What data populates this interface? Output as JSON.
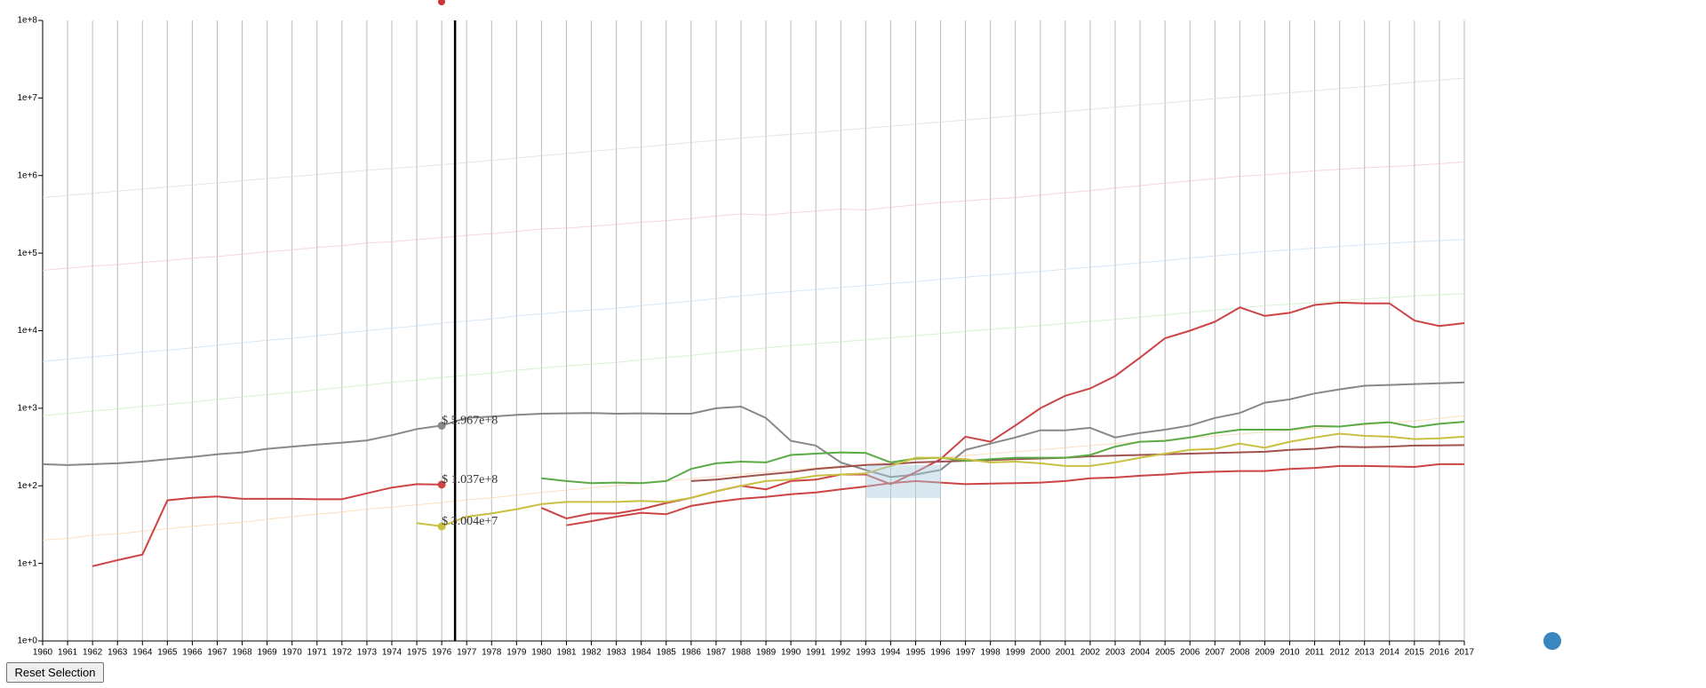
{
  "chart_data": {
    "type": "line",
    "yscale": "log",
    "grid": true,
    "hover_x": 1976,
    "xlim": [
      1960,
      2017
    ],
    "ylim": [
      1,
      100000000
    ],
    "x": [
      1960,
      1961,
      1962,
      1963,
      1964,
      1965,
      1966,
      1967,
      1968,
      1969,
      1970,
      1971,
      1972,
      1973,
      1974,
      1975,
      1976,
      1977,
      1978,
      1979,
      1980,
      1981,
      1982,
      1983,
      1984,
      1985,
      1986,
      1987,
      1988,
      1989,
      1990,
      1991,
      1992,
      1993,
      1994,
      1995,
      1996,
      1997,
      1998,
      1999,
      2000,
      2001,
      2002,
      2003,
      2004,
      2005,
      2006,
      2007,
      2008,
      2009,
      2010,
      2011,
      2012,
      2013,
      2014,
      2015,
      2016,
      2017
    ],
    "xticks": [
      1960,
      1961,
      1962,
      1963,
      1964,
      1965,
      1966,
      1967,
      1968,
      1969,
      1970,
      1971,
      1972,
      1973,
      1974,
      1975,
      1976,
      1977,
      1978,
      1979,
      1980,
      1981,
      1982,
      1983,
      1984,
      1985,
      1986,
      1987,
      1988,
      1989,
      1990,
      1991,
      1992,
      1993,
      1994,
      1995,
      1996,
      1997,
      1998,
      1999,
      2000,
      2001,
      2002,
      2003,
      2004,
      2005,
      2006,
      2007,
      2008,
      2009,
      2010,
      2011,
      2012,
      2013,
      2014,
      2015,
      2016,
      2017
    ],
    "yticks": [
      {
        "value": 1,
        "label": "1e+0"
      },
      {
        "value": 10,
        "label": "1e+1"
      },
      {
        "value": 100,
        "label": "1e+2"
      },
      {
        "value": 1000,
        "label": "1e+3"
      },
      {
        "value": 10000,
        "label": "1e+4"
      },
      {
        "value": 100000,
        "label": "1e+5"
      },
      {
        "value": 1000000,
        "label": "1e+6"
      },
      {
        "value": 10000000,
        "label": "1e+7"
      },
      {
        "value": 100000000,
        "label": "1e+8"
      }
    ],
    "series": [
      {
        "color": "#d8d8e0",
        "line_width": 1,
        "values": [
          520000,
          555000,
          590000,
          630000,
          670000,
          710000,
          755000,
          805000,
          860000,
          915000,
          970000,
          1030000,
          1100000,
          1170000,
          1240000,
          1300000,
          1380000,
          1470000,
          1570000,
          1680000,
          1800000,
          1920000,
          2050000,
          2190000,
          2340000,
          2500000,
          2670000,
          2850000,
          3040000,
          3220000,
          3400000,
          3600000,
          3830000,
          4070000,
          4330000,
          4600000,
          4900000,
          5200000,
          5550000,
          5900000,
          6300000,
          6700000,
          7150000,
          7600000,
          8100000,
          8600000,
          9200000,
          9800000,
          10400000,
          11000000,
          11700000,
          12400000,
          13200000,
          14000000,
          15000000,
          16000000,
          17000000,
          18000000
        ]
      },
      {
        "color": "#f2c4c4",
        "line_width": 1,
        "values": [
          60000,
          64000,
          68000,
          71000,
          76000,
          80000,
          86000,
          90000,
          97000,
          104000,
          110000,
          118000,
          125000,
          135000,
          140000,
          150000,
          158000,
          170000,
          178000,
          190000,
          205000,
          210000,
          222000,
          235000,
          250000,
          262000,
          280000,
          300000,
          320000,
          310000,
          330000,
          350000,
          370000,
          360000,
          390000,
          420000,
          450000,
          470000,
          500000,
          520000,
          560000,
          600000,
          640000,
          690000,
          740000,
          800000,
          850000,
          910000,
          980000,
          1020000,
          1080000,
          1150000,
          1200000,
          1260000,
          1300000,
          1350000,
          1420000,
          1500000
        ]
      },
      {
        "color": "#c6dbef",
        "line_width": 1,
        "values": [
          4000,
          4300,
          4600,
          4900,
          5300,
          5600,
          6000,
          6500,
          7000,
          7500,
          8000,
          8600,
          9300,
          10000,
          10800,
          11500,
          12500,
          13300,
          14200,
          15500,
          16500,
          17500,
          18500,
          19500,
          21000,
          22500,
          24000,
          26000,
          28000,
          30000,
          32000,
          34000,
          36000,
          38000,
          40500,
          43000,
          46000,
          49000,
          52000,
          55000,
          58000,
          62000,
          66000,
          70000,
          75000,
          80000,
          86000,
          92000,
          98000,
          105000,
          110000,
          116000,
          122000,
          128000,
          134000,
          140000,
          145000,
          150000
        ]
      },
      {
        "color": "#c7e9c0",
        "line_width": 1,
        "values": [
          800,
          860,
          920,
          980,
          1060,
          1120,
          1200,
          1300,
          1400,
          1500,
          1600,
          1720,
          1860,
          2000,
          2160,
          2300,
          2500,
          2660,
          2840,
          3100,
          3300,
          3500,
          3700,
          3900,
          4200,
          4500,
          4800,
          5200,
          5600,
          6000,
          6400,
          6800,
          7200,
          7600,
          8100,
          8600,
          9200,
          9800,
          10400,
          11000,
          11600,
          12400,
          13200,
          14000,
          15000,
          16000,
          17200,
          18400,
          19600,
          21000,
          22000,
          23200,
          24400,
          25600,
          26800,
          28000,
          29000,
          30000
        ]
      },
      {
        "color": "#fdd0a2",
        "line_width": 1,
        "values": [
          20,
          21,
          23,
          24,
          26,
          28,
          30,
          32,
          34,
          37,
          40,
          43,
          46,
          50,
          53,
          57,
          61,
          66,
          70,
          76,
          82,
          88,
          94,
          100,
          108,
          115,
          123,
          132,
          141,
          150,
          160,
          170,
          180,
          190,
          200,
          215,
          230,
          245,
          260,
          275,
          290,
          310,
          330,
          350,
          370,
          390,
          415,
          440,
          465,
          490,
          520,
          550,
          580,
          610,
          650,
          690,
          740,
          800
        ]
      },
      {
        "color": "#888888",
        "line_width": 2,
        "tooltip": "$ 5.967e+8",
        "values": [
          190,
          185,
          190,
          195,
          205,
          220,
          235,
          255,
          270,
          300,
          320,
          340,
          360,
          385,
          450,
          540,
          597,
          750,
          780,
          820,
          850,
          860,
          870,
          850,
          860,
          850,
          850,
          1000,
          1050,
          750,
          380,
          330,
          200,
          160,
          130,
          140,
          160,
          290,
          350,
          420,
          520,
          520,
          560,
          420,
          480,
          530,
          600,
          750,
          870,
          1180,
          1300,
          1550,
          1750,
          1950,
          2000,
          2050,
          2100,
          2150
        ]
      },
      {
        "color": "#cc4444",
        "line_width": 2,
        "tooltip": "$ 1.037e+8",
        "values": [
          null,
          null,
          9.2,
          11,
          13,
          65,
          70,
          73,
          68,
          68,
          68,
          67,
          67,
          80,
          95,
          105,
          103.7,
          null,
          null,
          null,
          null,
          31,
          35,
          40,
          45,
          43,
          55,
          62,
          68,
          72,
          78,
          82,
          90,
          98,
          108,
          115,
          110,
          105,
          107,
          108,
          110,
          115,
          125,
          128,
          135,
          140,
          148,
          152,
          155,
          155,
          165,
          170,
          180,
          180,
          178,
          175,
          190,
          190
        ]
      },
      {
        "color": "#cc4444",
        "line_width": 2,
        "values": [
          null,
          null,
          null,
          null,
          null,
          null,
          null,
          null,
          null,
          null,
          null,
          null,
          null,
          null,
          null,
          null,
          null,
          null,
          null,
          null,
          52,
          38,
          44,
          44,
          50,
          60,
          70,
          85,
          100,
          90,
          115,
          120,
          140,
          140,
          105,
          150,
          220,
          430,
          370,
          600,
          1000,
          1450,
          1800,
          2600,
          4500,
          8000,
          10000,
          13000,
          20000,
          15500,
          17000,
          21500,
          23000,
          22500,
          22500,
          13500,
          11500,
          12500
        ]
      },
      {
        "color": "#a0524f",
        "line_width": 2,
        "values": [
          null,
          null,
          null,
          null,
          null,
          null,
          null,
          null,
          null,
          null,
          null,
          null,
          null,
          null,
          null,
          null,
          null,
          null,
          null,
          null,
          null,
          null,
          null,
          null,
          null,
          null,
          115,
          120,
          130,
          140,
          150,
          165,
          175,
          185,
          190,
          200,
          205,
          210,
          215,
          220,
          225,
          230,
          240,
          245,
          250,
          255,
          260,
          265,
          270,
          275,
          290,
          300,
          320,
          315,
          320,
          330,
          332,
          335
        ]
      },
      {
        "color": "#5aaa46",
        "line_width": 2,
        "values": [
          null,
          null,
          null,
          null,
          null,
          null,
          null,
          null,
          null,
          null,
          null,
          null,
          null,
          null,
          null,
          null,
          null,
          null,
          null,
          null,
          125,
          115,
          108,
          110,
          108,
          115,
          165,
          195,
          205,
          200,
          250,
          260,
          270,
          265,
          200,
          225,
          230,
          210,
          220,
          230,
          230,
          230,
          250,
          320,
          370,
          380,
          420,
          480,
          530,
          530,
          530,
          590,
          580,
          630,
          660,
          570,
          630,
          670
        ]
      },
      {
        "color": "#c8c040",
        "line_width": 2,
        "tooltip": "$ 3.004e+7",
        "values": [
          null,
          null,
          null,
          null,
          null,
          null,
          null,
          null,
          null,
          null,
          null,
          null,
          null,
          null,
          null,
          33,
          30.04,
          40,
          44,
          50,
          58,
          62,
          62,
          62,
          64,
          62,
          70,
          85,
          100,
          115,
          120,
          135,
          140,
          145,
          180,
          230,
          230,
          220,
          200,
          205,
          195,
          180,
          180,
          200,
          230,
          260,
          290,
          300,
          350,
          310,
          370,
          420,
          470,
          440,
          430,
          400,
          410,
          430
        ]
      }
    ]
  },
  "controls": {
    "reset_button": "Reset Selection"
  }
}
